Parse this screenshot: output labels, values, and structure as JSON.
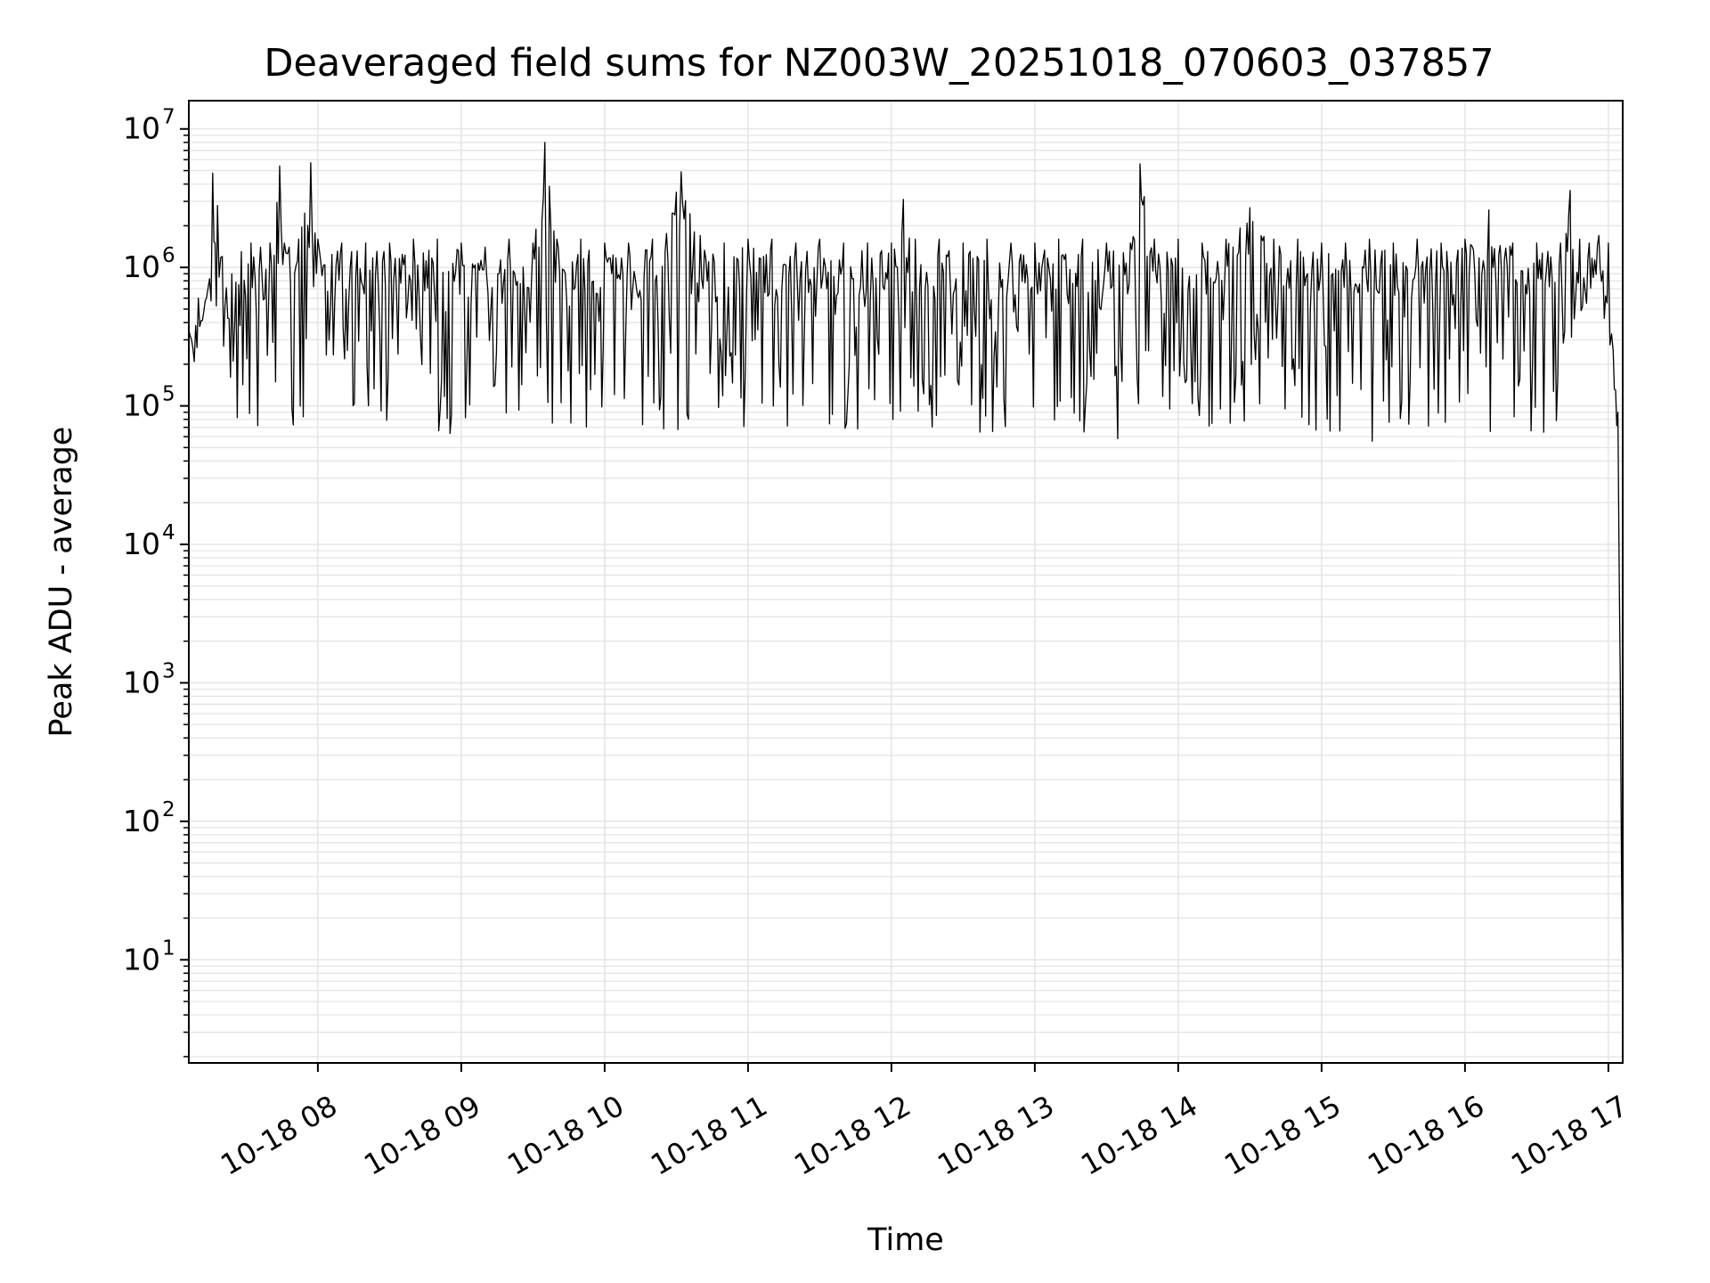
{
  "chart_data": {
    "type": "line",
    "title": "Deaveraged field sums for NZ003W_20251018_070603_037857",
    "xlabel": "Time",
    "ylabel": "Peak ADU - average",
    "yscale": "log",
    "grid": true,
    "line_color": "#000000",
    "grid_color": "#e6e6e6",
    "xlim": [
      "2025-10-18 07:06",
      "2025-10-18 17:06"
    ],
    "ylim": [
      1.8,
      16000000
    ],
    "x_ticks": [
      {
        "value": "2025-10-18 08:00",
        "label": "10-18 08"
      },
      {
        "value": "2025-10-18 09:00",
        "label": "10-18 09"
      },
      {
        "value": "2025-10-18 10:00",
        "label": "10-18 10"
      },
      {
        "value": "2025-10-18 11:00",
        "label": "10-18 11"
      },
      {
        "value": "2025-10-18 12:00",
        "label": "10-18 12"
      },
      {
        "value": "2025-10-18 13:00",
        "label": "10-18 13"
      },
      {
        "value": "2025-10-18 14:00",
        "label": "10-18 14"
      },
      {
        "value": "2025-10-18 15:00",
        "label": "10-18 15"
      },
      {
        "value": "2025-10-18 16:00",
        "label": "10-18 16"
      },
      {
        "value": "2025-10-18 17:00",
        "label": "10-18 17"
      }
    ],
    "y_ticks": [
      {
        "value": 10,
        "base": "10",
        "exp": "1"
      },
      {
        "value": 100,
        "base": "10",
        "exp": "2"
      },
      {
        "value": 1000,
        "base": "10",
        "exp": "3"
      },
      {
        "value": 10000,
        "base": "10",
        "exp": "4"
      },
      {
        "value": 100000,
        "base": "10",
        "exp": "5"
      },
      {
        "value": 1000000,
        "base": "10",
        "exp": "6"
      },
      {
        "value": 10000000,
        "base": "10",
        "exp": "7"
      }
    ],
    "series": [
      {
        "x": [
          "2025-10-18 07:06",
          "2025-10-18 07:10",
          "2025-10-18 07:14",
          "2025-10-18 07:16",
          "2025-10-18 07:17",
          "2025-10-18 07:18",
          "2025-10-18 07:20",
          "2025-10-18 07:24",
          "2025-10-18 07:28",
          "2025-10-18 07:32",
          "2025-10-18 07:36",
          "2025-10-18 07:40",
          "2025-10-18 07:44",
          "2025-10-18 07:46",
          "2025-10-18 07:48",
          "2025-10-18 07:52",
          "2025-10-18 07:57",
          "2025-10-18 08:00",
          "2025-10-18 08:10",
          "2025-10-18 08:20",
          "2025-10-18 08:30",
          "2025-10-18 08:40",
          "2025-10-18 08:50",
          "2025-10-18 09:00",
          "2025-10-18 09:10",
          "2025-10-18 09:20",
          "2025-10-18 09:30",
          "2025-10-18 09:35",
          "2025-10-18 09:40",
          "2025-10-18 09:50",
          "2025-10-18 10:00",
          "2025-10-18 10:10",
          "2025-10-18 10:20",
          "2025-10-18 10:30",
          "2025-10-18 10:32",
          "2025-10-18 10:40",
          "2025-10-18 10:50",
          "2025-10-18 11:00",
          "2025-10-18 11:10",
          "2025-10-18 11:20",
          "2025-10-18 11:30",
          "2025-10-18 11:40",
          "2025-10-18 11:50",
          "2025-10-18 12:00",
          "2025-10-18 12:05",
          "2025-10-18 12:10",
          "2025-10-18 12:20",
          "2025-10-18 12:30",
          "2025-10-18 12:40",
          "2025-10-18 12:50",
          "2025-10-18 13:00",
          "2025-10-18 13:10",
          "2025-10-18 13:20",
          "2025-10-18 13:30",
          "2025-10-18 13:40",
          "2025-10-18 13:44",
          "2025-10-18 13:50",
          "2025-10-18 14:00",
          "2025-10-18 14:10",
          "2025-10-18 14:20",
          "2025-10-18 14:30",
          "2025-10-18 14:40",
          "2025-10-18 14:50",
          "2025-10-18 15:00",
          "2025-10-18 15:10",
          "2025-10-18 15:20",
          "2025-10-18 15:30",
          "2025-10-18 15:40",
          "2025-10-18 15:50",
          "2025-10-18 16:00",
          "2025-10-18 16:10",
          "2025-10-18 16:20",
          "2025-10-18 16:30",
          "2025-10-18 16:40",
          "2025-10-18 16:44",
          "2025-10-18 16:48",
          "2025-10-18 16:52",
          "2025-10-18 16:56",
          "2025-10-18 17:00",
          "2025-10-18 17:02",
          "2025-10-18 17:03",
          "2025-10-18 17:04",
          "2025-10-18 17:05",
          "2025-10-18 17:06"
        ],
        "y_high": [
          350000,
          600000,
          700000,
          4800000,
          1500000,
          2800000,
          1200000,
          900000,
          1300000,
          1500000,
          1400000,
          1500000,
          5400000,
          1500000,
          1400000,
          1600000,
          5700000,
          1600000,
          1500000,
          1500000,
          1500000,
          1600000,
          1600000,
          1500000,
          1400000,
          1600000,
          1500000,
          8000000,
          1600000,
          1600000,
          1500000,
          1500000,
          1600000,
          3500000,
          4900000,
          1700000,
          1500000,
          1600000,
          1600000,
          1500000,
          1600000,
          1500000,
          1500000,
          1500000,
          3100000,
          1600000,
          1600000,
          1500000,
          1600000,
          1500000,
          1500000,
          1600000,
          1600000,
          1500000,
          1500000,
          5600000,
          1600000,
          1600000,
          1500000,
          1600000,
          2700000,
          1600000,
          1600000,
          1500000,
          1500000,
          1600000,
          1500000,
          1600000,
          1500000,
          1600000,
          2600000,
          1500000,
          1500000,
          1500000,
          3600000,
          1600000,
          1500000,
          1700000,
          1500000,
          250000,
          130000,
          90000,
          1000,
          4
        ],
        "y_low": [
          300000,
          350000,
          450000,
          400000,
          350000,
          300000,
          150000,
          90000,
          50000,
          60000,
          70000,
          55000,
          50000,
          60000,
          60000,
          65000,
          55000,
          60000,
          70000,
          55000,
          75000,
          60000,
          55000,
          70000,
          60000,
          75000,
          70000,
          70000,
          75000,
          70000,
          70000,
          75000,
          70000,
          65000,
          70000,
          50000,
          70000,
          65000,
          70000,
          70000,
          75000,
          65000,
          60000,
          45000,
          70000,
          65000,
          70000,
          75000,
          60000,
          70000,
          65000,
          60000,
          65000,
          60000,
          55000,
          60000,
          60000,
          65000,
          65000,
          70000,
          60000,
          55000,
          65000,
          60000,
          60000,
          55000,
          60000,
          65000,
          60000,
          60000,
          60000,
          55000,
          60000,
          70000,
          300000,
          400000,
          450000,
          500000,
          200000,
          100000,
          60000,
          20000,
          400,
          4
        ]
      }
    ]
  }
}
